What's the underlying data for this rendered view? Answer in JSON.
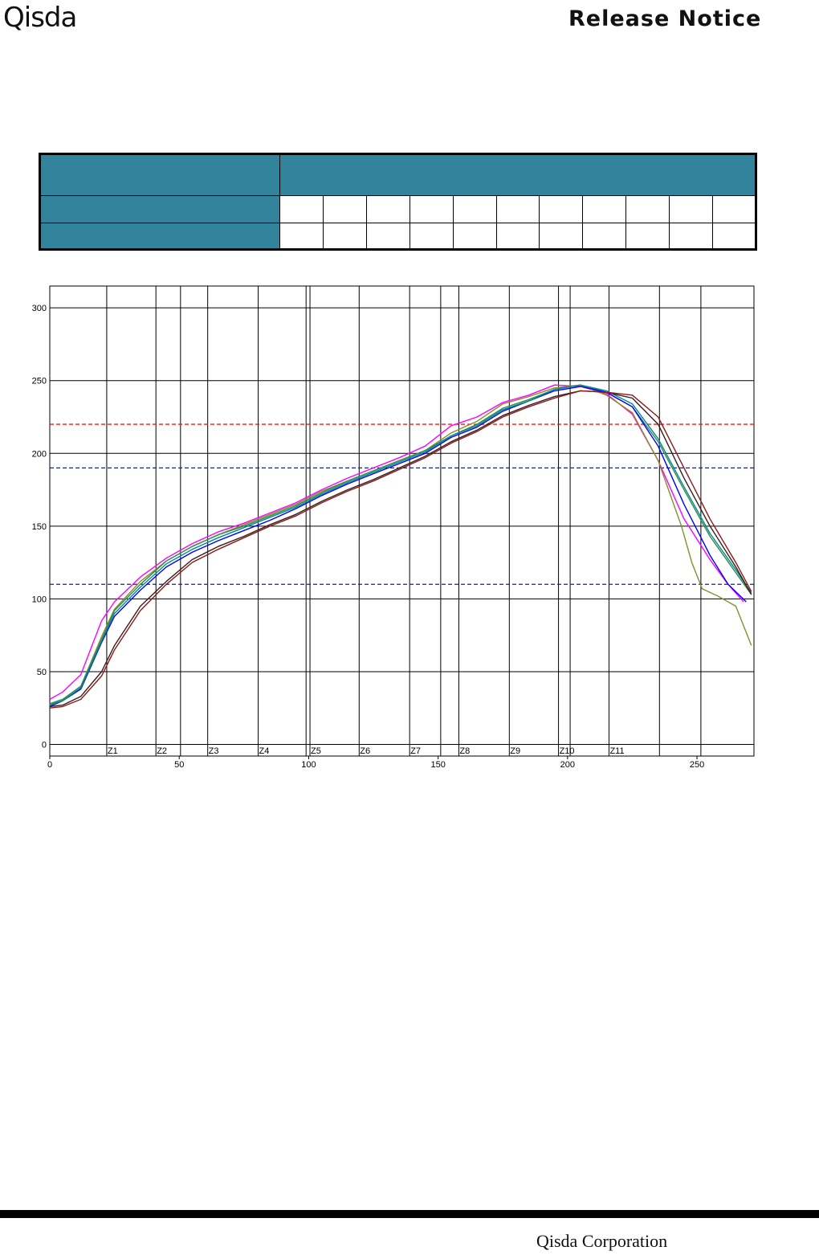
{
  "header": {
    "logo_text": "Qisda",
    "title": "Release Notice"
  },
  "footer": {
    "company": "Qisda Corporation"
  },
  "zone_table": {
    "rows": 3,
    "zone_columns": 11
  },
  "chart_data": {
    "type": "line",
    "title": "",
    "xlabel": "",
    "ylabel": "",
    "xlim": [
      0,
      272
    ],
    "ylim": [
      -8,
      315
    ],
    "x_ticks": [
      0,
      50,
      100,
      150,
      200,
      250
    ],
    "y_ticks": [
      0,
      50,
      100,
      150,
      200,
      250,
      300
    ],
    "grid": true,
    "zone_boundaries": [
      22,
      41,
      50.5,
      61,
      80.5,
      99,
      100.5,
      119.5,
      139,
      151,
      158,
      177.5,
      196.5,
      201,
      216,
      235.5,
      251.5
    ],
    "zone_labels": [
      {
        "label": "Z1",
        "x": 22
      },
      {
        "label": "Z2",
        "x": 41
      },
      {
        "label": "Z3",
        "x": 61
      },
      {
        "label": "Z4",
        "x": 80.5
      },
      {
        "label": "Z5",
        "x": 100.5
      },
      {
        "label": "Z6",
        "x": 119.5
      },
      {
        "label": "Z7",
        "x": 139
      },
      {
        "label": "Z8",
        "x": 158
      },
      {
        "label": "Z9",
        "x": 177.5
      },
      {
        "label": "Z10",
        "x": 196.5
      },
      {
        "label": "Z11",
        "x": 216
      }
    ],
    "reference_lines": [
      {
        "y": 220,
        "color": "#e02020"
      },
      {
        "y": 190,
        "color": "#1a237e"
      },
      {
        "y": 110,
        "color": "#1a237e"
      }
    ],
    "series": [
      {
        "color": "#ff00ff",
        "x": [
          0,
          5,
          12,
          20,
          25,
          35,
          45,
          55,
          65,
          75,
          85,
          95,
          105,
          115,
          125,
          135,
          145,
          155,
          165,
          175,
          185,
          195,
          205,
          215,
          225,
          235,
          245,
          255,
          262,
          268
        ],
        "y": [
          31,
          36,
          48,
          85,
          98,
          115,
          128,
          138,
          146,
          152,
          159,
          166,
          175,
          183,
          190,
          197,
          205,
          219,
          225,
          235,
          240,
          247,
          246,
          241,
          227,
          195,
          155,
          127,
          110,
          98
        ]
      },
      {
        "color": "#8b8b2a",
        "x": [
          0,
          5,
          12,
          20,
          25,
          35,
          45,
          55,
          65,
          75,
          85,
          95,
          105,
          115,
          125,
          135,
          145,
          155,
          165,
          175,
          185,
          195,
          205,
          215,
          225,
          235,
          240,
          244,
          248,
          252,
          258,
          265,
          271
        ],
        "y": [
          27,
          31,
          40,
          74,
          93,
          112,
          126,
          136,
          144,
          151,
          158,
          165,
          174,
          181,
          188,
          195,
          202,
          214,
          222,
          234,
          239,
          245,
          247,
          240,
          228,
          195,
          170,
          150,
          125,
          107,
          102,
          95,
          68
        ]
      },
      {
        "color": "#2e8b57",
        "x": [
          0,
          5,
          12,
          20,
          25,
          35,
          45,
          55,
          65,
          75,
          85,
          95,
          105,
          115,
          125,
          135,
          145,
          155,
          165,
          175,
          185,
          195,
          205,
          215,
          225,
          235,
          245,
          255,
          265,
          271
        ],
        "y": [
          28,
          31,
          40,
          72,
          92,
          110,
          126,
          136,
          144,
          150,
          157,
          164,
          173,
          181,
          188,
          195,
          202,
          212,
          220,
          231,
          237,
          244,
          247,
          242,
          232,
          208,
          175,
          143,
          118,
          103
        ]
      },
      {
        "color": "#0000ff",
        "x": [
          0,
          5,
          12,
          20,
          25,
          35,
          45,
          55,
          65,
          75,
          85,
          95,
          105,
          115,
          125,
          135,
          145,
          155,
          165,
          175,
          185,
          195,
          205,
          215,
          225,
          235,
          245,
          255,
          262,
          269
        ],
        "y": [
          26,
          30,
          38,
          70,
          88,
          106,
          122,
          132,
          140,
          147,
          154,
          162,
          171,
          179,
          186,
          193,
          200,
          211,
          218,
          229,
          236,
          243,
          246,
          242,
          232,
          205,
          165,
          130,
          110,
          98
        ]
      },
      {
        "color": "#008b8b",
        "x": [
          0,
          5,
          12,
          20,
          25,
          35,
          45,
          55,
          65,
          75,
          85,
          95,
          105,
          115,
          125,
          135,
          145,
          155,
          165,
          175,
          185,
          195,
          205,
          215,
          225,
          235,
          245,
          255,
          265,
          271
        ],
        "y": [
          27,
          30,
          39,
          71,
          90,
          108,
          124,
          134,
          142,
          149,
          156,
          163,
          172,
          180,
          187,
          194,
          201,
          212,
          219,
          230,
          236,
          244,
          247,
          243,
          234,
          210,
          177,
          145,
          120,
          104
        ]
      },
      {
        "color": "#3b1c1c",
        "x": [
          0,
          5,
          12,
          20,
          25,
          35,
          45,
          55,
          65,
          75,
          85,
          95,
          105,
          115,
          125,
          135,
          145,
          155,
          165,
          175,
          185,
          195,
          205,
          215,
          225,
          235,
          245,
          255,
          265,
          271
        ],
        "y": [
          26,
          27,
          33,
          50,
          68,
          95,
          112,
          127,
          136,
          143,
          151,
          158,
          167,
          175,
          182,
          190,
          198,
          208,
          216,
          226,
          233,
          239,
          243,
          242,
          238,
          220,
          183,
          150,
          122,
          103
        ]
      },
      {
        "color": "#8b1a1a",
        "x": [
          0,
          5,
          12,
          20,
          25,
          35,
          45,
          55,
          65,
          75,
          85,
          95,
          105,
          115,
          125,
          135,
          145,
          155,
          165,
          175,
          185,
          195,
          205,
          215,
          225,
          235,
          245,
          255,
          265,
          271
        ],
        "y": [
          25,
          26,
          31,
          47,
          65,
          92,
          110,
          125,
          134,
          142,
          150,
          157,
          166,
          174,
          181,
          189,
          197,
          207,
          215,
          225,
          232,
          238,
          243,
          242,
          240,
          225,
          190,
          155,
          125,
          105
        ]
      }
    ]
  }
}
